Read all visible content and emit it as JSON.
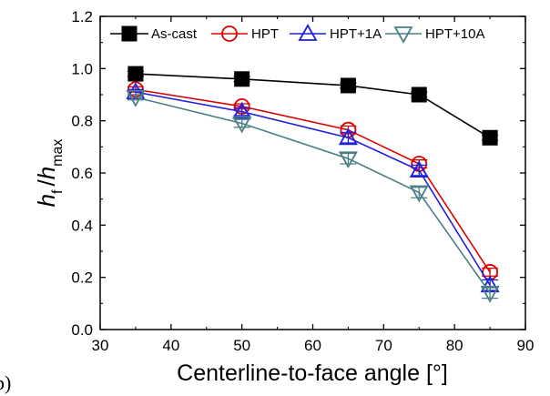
{
  "chart_data": {
    "type": "line",
    "title": "",
    "panel_label": "b)",
    "xlabel": "Centerline-to-face angle [°]",
    "ylabel": "h_f / h_max",
    "ylabel_parts": {
      "h1": "h",
      "sub1": "f",
      "slash": "/",
      "h2": "h",
      "sub2": "max"
    },
    "xlim": [
      30,
      90
    ],
    "ylim": [
      0.0,
      1.2
    ],
    "xticks": [
      30,
      40,
      50,
      60,
      70,
      80,
      90
    ],
    "yticks": [
      "0.0",
      "0.2",
      "0.4",
      "0.6",
      "0.8",
      "1.0",
      "1.2"
    ],
    "grid": false,
    "legend_position": "top",
    "x": [
      35,
      50,
      65,
      75,
      85
    ],
    "series": [
      {
        "name": "As-cast",
        "color": "#000000",
        "marker": "filled-square",
        "values": [
          0.98,
          0.96,
          0.935,
          0.9,
          0.735
        ],
        "errors": [
          0.01,
          0.01,
          0.01,
          0.01,
          0.01
        ]
      },
      {
        "name": "HPT",
        "color": "#dd0000",
        "marker": "open-circle",
        "values": [
          0.92,
          0.855,
          0.765,
          0.635,
          0.22
        ],
        "errors": [
          0.01,
          0.01,
          0.015,
          0.015,
          0.015
        ]
      },
      {
        "name": "HPT+1A",
        "color": "#1f1fdd",
        "marker": "open-triangle-up",
        "values": [
          0.91,
          0.835,
          0.735,
          0.61,
          0.17
        ],
        "errors": [
          0.01,
          0.015,
          0.02,
          0.02,
          0.02
        ]
      },
      {
        "name": "HPT+10A",
        "color": "#4a7f86",
        "marker": "open-triangle-down",
        "values": [
          0.89,
          0.79,
          0.655,
          0.525,
          0.14
        ],
        "errors": [
          0.01,
          0.015,
          0.02,
          0.02,
          0.02
        ]
      }
    ]
  }
}
